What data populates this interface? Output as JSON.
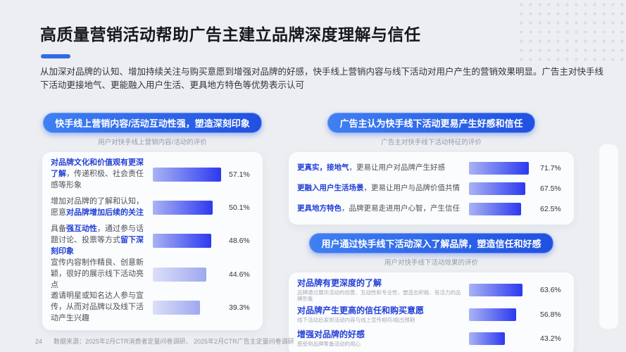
{
  "page": {
    "title": "高质量营销活动帮助广告主建立品牌深度理解与信任",
    "description": "从加深对品牌的认知、增加持续关注与购买意愿到增强对品牌的好感，快手线上营销内容与线下活动对用户产生的营销效果明显。广告主对快手线下活动更接地气、更能融入用户生活、更具地方特色等优势表示认可",
    "page_number": "24",
    "source": "数据来源：2025年2月CTR消费者定量问卷调研、 2025年2月CTR广告主定量问卷调研"
  },
  "colors": {
    "accent_blue": "#2e6be8",
    "pill_blue_start": "#4080f2",
    "pill_blue_end": "#2050e0",
    "bar_strong_start": "#a9b3f3",
    "bar_strong_end": "#2c39f0",
    "bar_light_start": "#dcdff9",
    "bar_light_end": "#9ea9ee",
    "highlight_text": "#2340d6"
  },
  "left_panel": {
    "header": "快手线上营销内容/活动互动性强，塑造深刻印象",
    "subtitle": "用户对快手线上营销内容/活动的评价"
  },
  "right_panel": {
    "header_top": "广告主认为快手线下活动更易产生好感和信任",
    "subtitle_top": "广告主对快手线下活动特征的评价",
    "header_mid": "用户通过快手线下活动深入了解品牌，塑造信任和好感",
    "subtitle_mid": "用户对快手线下活动效果的评价"
  },
  "chart_data": [
    {
      "id": "left",
      "type": "bar",
      "orientation": "horizontal",
      "title": "快手线上营销内容/活动互动性强，塑造深刻印象",
      "subtitle": "用户对快手线上营销内容/活动的评价",
      "unit": "%",
      "xlim": [
        0,
        60
      ],
      "grid": false,
      "items": [
        {
          "segments": [
            {
              "text": "对品牌文化和价值观有更深了解",
              "em": true
            },
            {
              "text": "，传递积极、社会责任感等形象",
              "em": false
            }
          ],
          "value": 57.1,
          "style": "strong"
        },
        {
          "segments": [
            {
              "text": "增加对品牌的了解和认知，愿意",
              "em": false
            },
            {
              "text": "对品牌增加后续的关注",
              "em": true
            }
          ],
          "value": 50.1,
          "style": "strong"
        },
        {
          "segments": [
            {
              "text": "具备",
              "em": false
            },
            {
              "text": "强互动性",
              "em": true
            },
            {
              "text": "，通过参与话题讨论、投票等方式",
              "em": false
            },
            {
              "text": "留下深刻印象",
              "em": true
            }
          ],
          "value": 48.6,
          "style": "strong"
        },
        {
          "segments": [
            {
              "text": "宣传内容制作精良、创意新颖，很好的展示线下活动亮点",
              "em": false
            }
          ],
          "value": 44.6,
          "style": "light"
        },
        {
          "segments": [
            {
              "text": "邀请明星或知名达人参与宣传，从而对品牌以及线下活动产生兴趣",
              "em": false
            }
          ],
          "value": 39.3,
          "style": "light"
        }
      ]
    },
    {
      "id": "right_top",
      "type": "bar",
      "orientation": "horizontal",
      "title": "广告主认为快手线下活动更易产生好感和信任",
      "subtitle": "广告主对快手线下活动特征的评价",
      "unit": "%",
      "xlim": [
        0,
        80
      ],
      "grid": false,
      "items": [
        {
          "segments": [
            {
              "text": "更真实，接地气",
              "em": true
            },
            {
              "text": "，更易让用户对品牌产生好感",
              "em": false
            }
          ],
          "value": 71.7,
          "style": "strong"
        },
        {
          "segments": [
            {
              "text": "更融入用户生活场景",
              "em": true
            },
            {
              "text": "，更易让用户与品牌价值共情",
              "em": false
            }
          ],
          "value": 67.5,
          "style": "strong"
        },
        {
          "segments": [
            {
              "text": "更具地方特色",
              "em": true
            },
            {
              "text": "，品牌更易走进用户心智，产生信任",
              "em": false
            }
          ],
          "value": 62.5,
          "style": "strong"
        }
      ]
    },
    {
      "id": "right_bottom",
      "type": "bar",
      "orientation": "horizontal",
      "title": "用户通过快手线下活动深入了解品牌，塑造信任和好感",
      "subtitle": "用户对快手线下活动效果的评价",
      "unit": "%",
      "xlim": [
        0,
        80
      ],
      "grid": false,
      "items": [
        {
          "title": "对品牌有更深度的了解",
          "sub": "品牌通过展示活动的创意、互动性和专业性，塑造出积极、有活力的品牌形象",
          "value": 63.6,
          "style": "strong"
        },
        {
          "title": "对品牌产生更高的信任和购买意愿",
          "sub": "线下活动后发现活动内容与线上宣传相符/超出预期",
          "value": 56.8,
          "style": "strong"
        },
        {
          "title": "增强对品牌的好感",
          "sub": "感受到品牌筹备活动的用心",
          "value": 43.2,
          "style": "strong"
        }
      ]
    }
  ]
}
